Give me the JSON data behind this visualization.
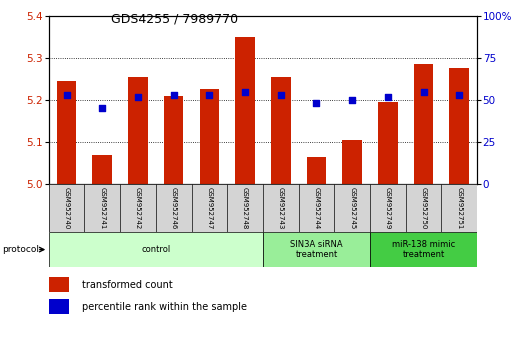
{
  "title": "GDS4255 / 7989770",
  "samples": [
    "GSM952740",
    "GSM952741",
    "GSM952742",
    "GSM952746",
    "GSM952747",
    "GSM952748",
    "GSM952743",
    "GSM952744",
    "GSM952745",
    "GSM952749",
    "GSM952750",
    "GSM952751"
  ],
  "bar_values": [
    5.245,
    5.07,
    5.255,
    5.21,
    5.225,
    5.35,
    5.255,
    5.065,
    5.105,
    5.195,
    5.285,
    5.275
  ],
  "percentile_values": [
    53,
    45,
    52,
    53,
    53,
    55,
    53,
    48,
    50,
    52,
    55,
    53
  ],
  "bar_color": "#cc2200",
  "percentile_color": "#0000cc",
  "ylim_left": [
    5.0,
    5.4
  ],
  "ylim_right": [
    0,
    100
  ],
  "yticks_left": [
    5.0,
    5.1,
    5.2,
    5.3,
    5.4
  ],
  "yticks_right": [
    0,
    25,
    50,
    75,
    100
  ],
  "ytick_labels_right": [
    "0",
    "25",
    "50",
    "75",
    "100%"
  ],
  "groups": [
    {
      "label": "control",
      "start": 0,
      "end": 6
    },
    {
      "label": "SIN3A siRNA\ntreatment",
      "start": 6,
      "end": 9
    },
    {
      "label": "miR-138 mimic\ntreatment",
      "start": 9,
      "end": 12
    }
  ],
  "group_colors": [
    "#ccffcc",
    "#99ee99",
    "#44cc44"
  ],
  "protocol_label": "protocol",
  "legend_items": [
    {
      "label": "transformed count",
      "color": "#cc2200"
    },
    {
      "label": "percentile rank within the sample",
      "color": "#0000cc"
    }
  ],
  "bg_color": "#ffffff",
  "tick_label_color_left": "#cc2200",
  "tick_label_color_right": "#0000cc",
  "bar_width": 0.55,
  "base_value": 5.0
}
